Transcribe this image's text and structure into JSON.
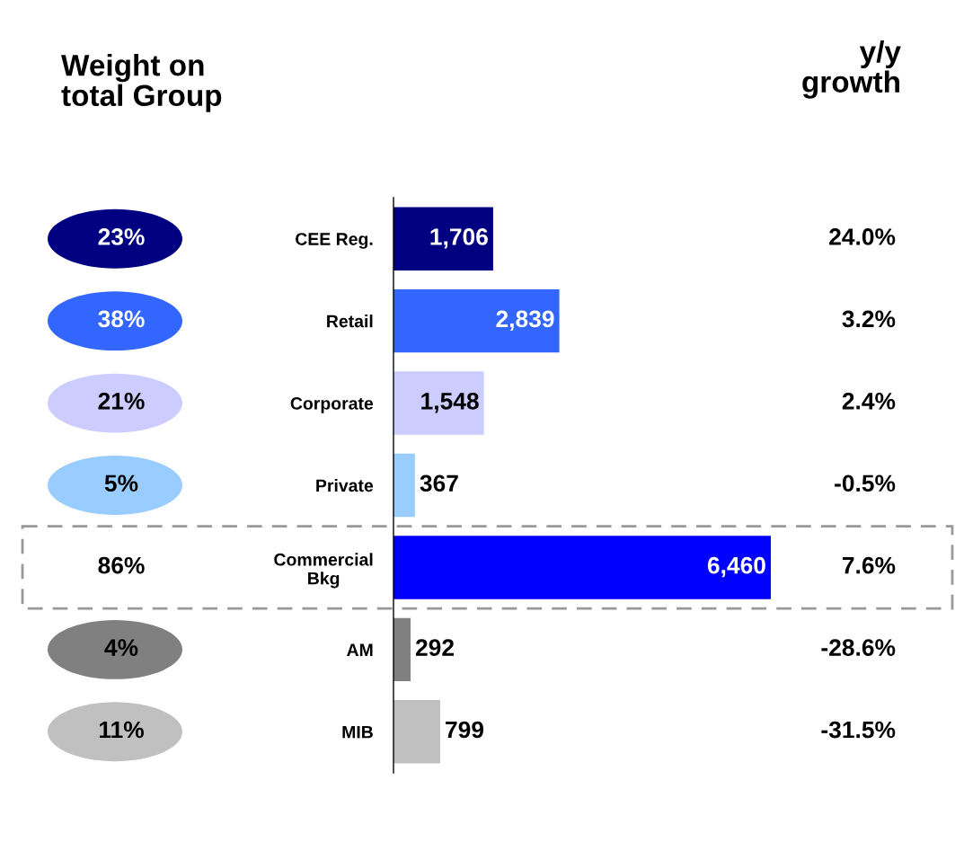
{
  "chart_data": {
    "type": "bar",
    "orientation": "horizontal",
    "categories": [
      "CEE Reg.",
      "Retail",
      "Corporate",
      "Private",
      "Commercial\nBkg",
      "AM",
      "MIB"
    ],
    "values": [
      1706,
      2839,
      1548,
      367,
      6460,
      292,
      799
    ],
    "colors": [
      "#000080",
      "#3366ff",
      "#ccccff",
      "#99ccff",
      "#0000ff",
      "#808080",
      "#c0c0c0"
    ],
    "value_labels": [
      "1,706",
      "2,839",
      "1,548",
      "367",
      "6,460",
      "292",
      "799"
    ],
    "annotations": [
      "Weight on\ntotal Group",
      "y/y\ngrowth",
      "23%",
      "38%",
      "21%",
      "5%",
      "86%",
      "4%",
      "11%",
      "24.0%",
      "3.2%",
      "2.4%",
      "-0.5%",
      "7.6%",
      "-28.6%",
      "-31.5%"
    ]
  }
}
